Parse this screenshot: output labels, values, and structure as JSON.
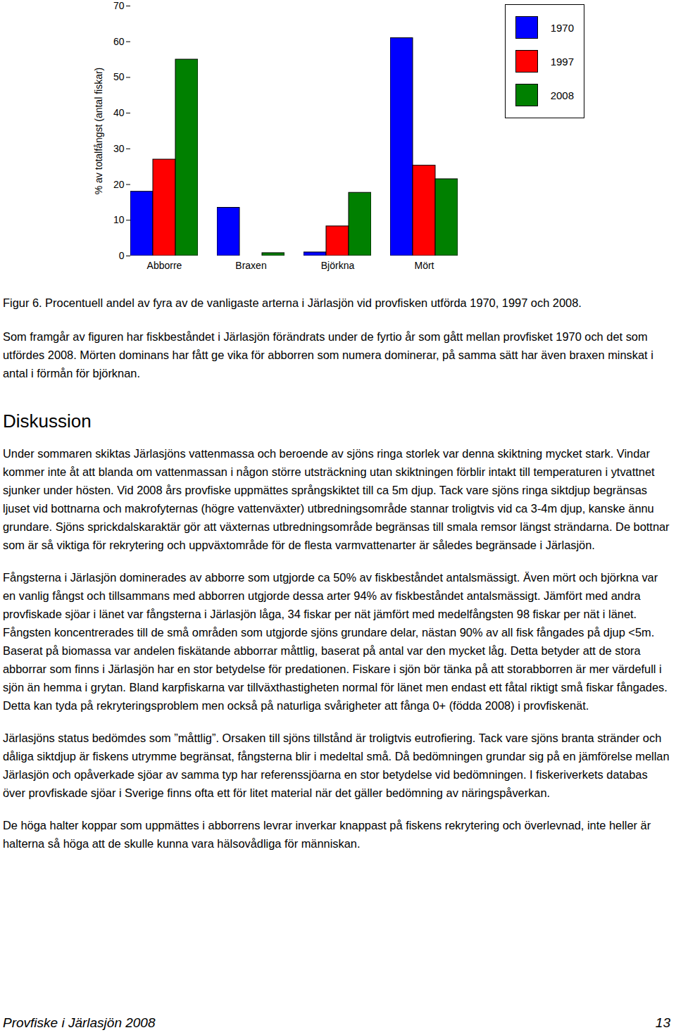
{
  "chart_data": {
    "type": "bar",
    "categories": [
      "Abborre",
      "Braxen",
      "Björkna",
      "Mört"
    ],
    "series": [
      {
        "name": "1970",
        "color": "#0000ff",
        "values": [
          18,
          13.5,
          1,
          61
        ]
      },
      {
        "name": "1997",
        "color": "#ff0000",
        "values": [
          27,
          0,
          8.3,
          25.3
        ]
      },
      {
        "name": "2008",
        "color": "#008000",
        "values": [
          55,
          0.8,
          17.7,
          21.5
        ]
      }
    ],
    "y_label": "% av totalfångst (antal fiskar)",
    "ylim": [
      0,
      70
    ],
    "yticks": [
      0,
      10,
      20,
      30,
      40,
      50,
      60,
      70
    ],
    "grid": false,
    "legend": "top-right"
  },
  "document": {
    "caption": "Figur 6. Procentuell andel av fyra av de vanligaste arterna i Järlasjön vid provfisken utförda 1970, 1997 och 2008.",
    "intro_paragraphs": [
      "Som framgår av figuren har fiskbeståndet i Järlasjön förändrats under de fyrtio år som gått mellan provfisket 1970 och det som utfördes 2008. Mörten dominans har fått ge vika för abborren som numera dominerar, på samma sätt har även braxen minskat i antal i förmån för björknan."
    ],
    "heading": "Diskussion",
    "paragraphs": [
      "Under sommaren skiktas Järlasjöns vattenmassa och beroende av sjöns ringa storlek var denna skiktning mycket stark. Vindar kommer inte åt att blanda om vattenmassan i någon större utsträckning utan skiktningen förblir intakt till temperaturen i ytvattnet sjunker under hösten. Vid 2008 års provfiske uppmättes språngskiktet till ca 5m djup. Tack vare sjöns ringa siktdjup begränsas ljuset vid bottnarna och makrofyternas (högre vattenväxter) utbredningsområde stannar troligtvis vid ca 3-4m djup, kanske ännu grundare. Sjöns sprickdalskaraktär gör att växternas utbredningsområde begränsas till smala remsor längst strändarna. De bottnar som är så viktiga för rekrytering och uppväxtområde för de flesta varmvattenarter är således begränsade i Järlasjön.",
      "Fångsterna i Järlasjön dominerades av abborre som utgjorde ca 50% av fiskbeståndet antalsmässigt. Även mört och björkna var en vanlig fångst och tillsammans med abborren utgjorde dessa arter 94% av fiskbeståndet antalsmässigt. Jämfört med andra provfiskade sjöar i länet var fångsterna i Järlasjön låga, 34 fiskar per nät jämfört med medelfångsten 98 fiskar per nät i länet. Fångsten koncentrerades till de små områden som utgjorde sjöns grundare delar, nästan 90% av all fisk fångades på djup <5m. Baserat på biomassa var andelen fiskätande abborrar måttlig, baserat på antal var den mycket låg. Detta betyder att de stora abborrar som finns i Järlasjön har en stor betydelse för predationen. Fiskare i sjön bör tänka på att storabborren är mer värdefull i sjön än hemma i grytan. Bland karpfiskarna var tillväxthastigheten normal för länet men endast ett fåtal riktigt små fiskar fångades. Detta kan tyda på rekryteringsproblem men också på naturliga svårigheter att fånga 0+ (födda 2008) i provfiskenät.",
      "Järlasjöns status bedömdes som ”måttlig”. Orsaken till sjöns tillstånd är troligtvis eutrofiering. Tack vare sjöns branta stränder och dåliga siktdjup är fiskens utrymme begränsat, fångsterna blir i medeltal små. Då bedömningen grundar sig på en jämförelse mellan Järlasjön och opåverkade sjöar av samma typ har referenssjöarna en stor betydelse vid bedömningen. I fiskeriverkets databas över provfiskade sjöar i Sverige finns ofta ett för litet material när det gäller bedömning av näringspåverkan.",
      "De höga halter koppar som uppmättes i abborrens levrar inverkar knappast på fiskens rekrytering och överlevnad, inte heller är halterna så höga att de skulle kunna vara hälsovådliga för människan."
    ],
    "footer": {
      "left": "Provfiske i Järlasjön 2008",
      "page": 13
    }
  }
}
